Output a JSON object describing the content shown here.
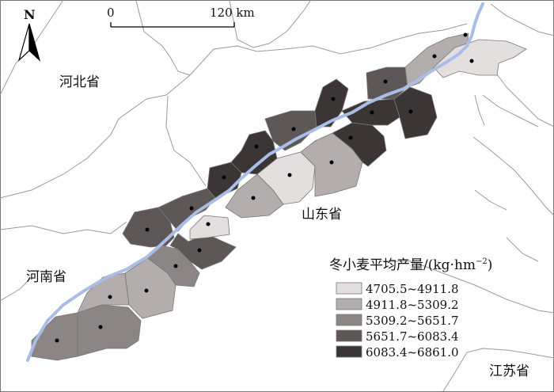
{
  "north_label": "N",
  "scale": {
    "start": "0",
    "end": "120 km"
  },
  "province_labels": {
    "hebei": "河北省",
    "shandong": "山东省",
    "henan": "河南省",
    "jiangsu": "江苏省"
  },
  "legend": {
    "title": "冬小麦平均产量/(kg·hm",
    "title_sup": "−2",
    "title_end": ")",
    "classes": [
      {
        "label": "4705.5~4911.8",
        "color": "#e3dfdf"
      },
      {
        "label": "4911.8~5309.2",
        "color": "#b3adad"
      },
      {
        "label": "5309.2~5651.7",
        "color": "#8b8585"
      },
      {
        "label": "5651.7~6083.4",
        "color": "#5d5757"
      },
      {
        "label": "6083.4~6861.0",
        "color": "#3b3535"
      }
    ]
  },
  "colors": {
    "river": "#a9bde6",
    "boundary": "#9a9a9a",
    "region_edge": "#777777"
  }
}
